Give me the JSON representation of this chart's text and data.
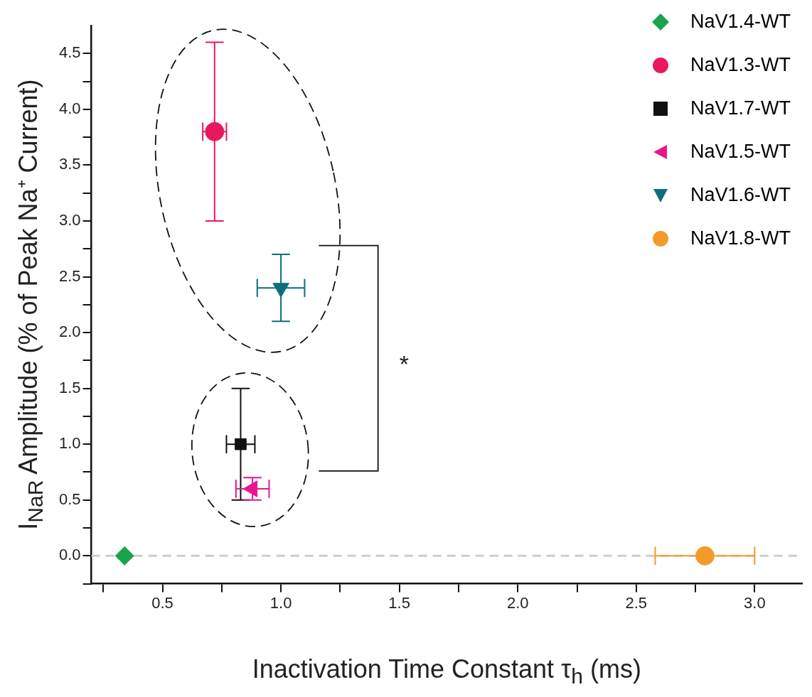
{
  "chart_data": {
    "type": "scatter",
    "xlabel": "Inactivation Time Constant τ$_{h}$ (ms)",
    "ylabel": "I$_{NaR}$ Amplitude (% of Peak Na⁺ Current)",
    "xlim": [
      0.2,
      3.2
    ],
    "xticks": [
      {
        "value": 0.25,
        "label": null
      },
      0.5,
      {
        "value": 0.75,
        "label": null
      },
      {
        "value": 1,
        "label": "1.0"
      },
      {
        "value": 1.25,
        "label": null
      },
      1.5,
      {
        "value": 1.75,
        "label": null
      },
      {
        "value": 2,
        "label": "2.0"
      },
      {
        "value": 2.25,
        "label": null
      },
      2.5,
      {
        "value": 2.75,
        "label": null
      },
      {
        "value": 3,
        "label": "3.0"
      }
    ],
    "ylim": [
      -0.25,
      4.75
    ],
    "yticks": [
      {
        "value": -0.25,
        "label": null
      },
      {
        "value": 0,
        "label": "0.0"
      },
      {
        "value": 0.25,
        "label": null
      },
      0.5,
      {
        "value": 0.75,
        "label": null
      },
      {
        "value": 1,
        "label": "1.0"
      },
      {
        "value": 1.25,
        "label": null
      },
      1.5,
      {
        "value": 1.75,
        "label": null
      },
      {
        "value": 2,
        "label": "2.0"
      },
      {
        "value": 2.25,
        "label": null
      },
      2.5,
      {
        "value": 2.75,
        "label": null
      },
      {
        "value": 3,
        "label": "3.0"
      },
      {
        "value": 3.25,
        "label": null
      },
      3.5,
      {
        "value": 3.75,
        "label": null
      },
      {
        "value": 4,
        "label": "4.0"
      },
      {
        "value": 4.25,
        "label": null
      },
      4.5
    ],
    "grid": false,
    "legend": "top right",
    "ref_lines": [
      {
        "axis": "y",
        "value": 0,
        "color": "#cccccc",
        "line_style": "dashed"
      }
    ],
    "annotations": [
      "*"
    ],
    "series": [
      {
        "name": "NaV1.4-WT",
        "color": "#1aa34a",
        "marker": "diamond",
        "x": [
          0.34
        ],
        "values": [
          0
        ]
      },
      {
        "name": "NaV1.3-WT",
        "color": "#e8185a",
        "marker": "circle",
        "x": [
          0.72
        ],
        "values": [
          3.8
        ],
        "errors": [
          0.8
        ],
        "xerrors": [
          0.05
        ]
      },
      {
        "name": "NaV1.7-WT",
        "color": "#111111",
        "marker": "square",
        "x": [
          0.83
        ],
        "values": [
          1.0
        ],
        "errors": [
          0.5
        ],
        "xerrors": [
          0.06
        ]
      },
      {
        "name": "NaV1.5-WT",
        "color": "#e8168c",
        "marker": "triangle-left",
        "x": [
          0.88
        ],
        "values": [
          0.6
        ],
        "errors": [
          0.1
        ],
        "xerrors": [
          0.07
        ]
      },
      {
        "name": "NaV1.6-WT",
        "color": "#0d6e7a",
        "marker": "triangle-down",
        "x": [
          1.0
        ],
        "values": [
          2.4
        ],
        "errors": [
          0.3
        ],
        "xerrors": [
          0.1
        ]
      },
      {
        "name": "NaV1.8-WT",
        "color": "#f39a2b",
        "marker": "circle",
        "x": [
          2.79
        ],
        "values": [
          0
        ],
        "xerrors": [
          [
            2.58,
            3.0
          ]
        ]
      }
    ]
  }
}
